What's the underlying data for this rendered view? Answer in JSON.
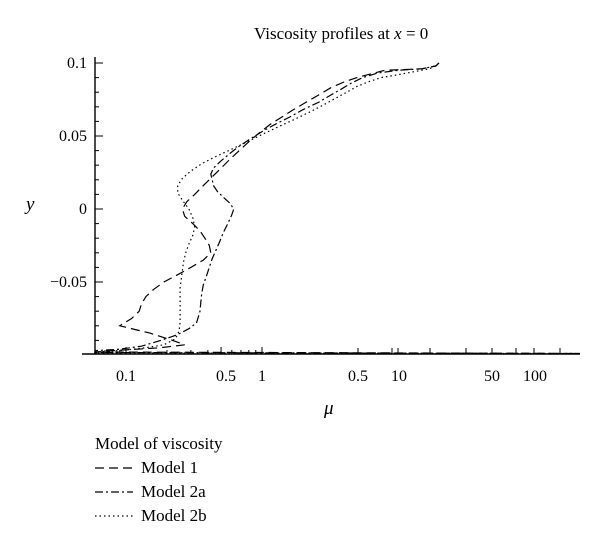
{
  "chart_data": {
    "type": "line",
    "title": "Viscosity profiles at x = 0",
    "title_parts": [
      "Viscosity profiles at ",
      "x",
      " = 0"
    ],
    "xlabel": "μ",
    "ylabel": "y",
    "x_scale": "log (broken axis, left part rescaled)",
    "y_ticks": [
      {
        "value": 0.1,
        "label": "0.1"
      },
      {
        "value": 0.05,
        "label": "0.05"
      },
      {
        "value": 0,
        "label": "0"
      },
      {
        "value": -0.05,
        "label": "−0.05"
      }
    ],
    "x_tick_labels": [
      "0.1",
      "0.5",
      "1",
      "0.5",
      "10",
      "50",
      "100"
    ],
    "legend_title": "Model of viscosity",
    "legend_position": "below-left",
    "grid": false,
    "series": [
      {
        "name": "Model 1",
        "dash": "dashed",
        "points": [
          [
            20,
            0.1
          ],
          [
            19,
            0.098
          ],
          [
            15,
            0.096
          ],
          [
            8,
            0.095
          ],
          [
            6,
            0.092
          ],
          [
            5,
            0.09
          ],
          [
            4,
            0.087
          ],
          [
            3.2,
            0.083
          ],
          [
            2.6,
            0.078
          ],
          [
            2.1,
            0.073
          ],
          [
            1.7,
            0.068
          ],
          [
            1.4,
            0.063
          ],
          [
            1.15,
            0.058
          ],
          [
            0.95,
            0.052
          ],
          [
            0.8,
            0.046
          ],
          [
            0.68,
            0.04
          ],
          [
            0.58,
            0.034
          ],
          [
            0.5,
            0.028
          ],
          [
            0.43,
            0.022
          ],
          [
            0.37,
            0.016
          ],
          [
            0.32,
            0.01
          ],
          [
            0.28,
            0.005
          ],
          [
            0.26,
            0.0
          ],
          [
            0.27,
            -0.005
          ],
          [
            0.31,
            -0.01
          ],
          [
            0.35,
            -0.015
          ],
          [
            0.38,
            -0.02
          ],
          [
            0.41,
            -0.025
          ],
          [
            0.42,
            -0.03
          ],
          [
            0.37,
            -0.035
          ],
          [
            0.3,
            -0.04
          ],
          [
            0.24,
            -0.045
          ],
          [
            0.19,
            -0.05
          ],
          [
            0.16,
            -0.055
          ],
          [
            0.14,
            -0.06
          ],
          [
            0.13,
            -0.065
          ],
          [
            0.125,
            -0.07
          ],
          [
            0.11,
            -0.075
          ],
          [
            0.09,
            -0.08
          ],
          [
            0.15,
            -0.085
          ],
          [
            0.22,
            -0.09
          ],
          [
            0.27,
            -0.093
          ],
          [
            0.18,
            -0.095
          ],
          [
            0.12,
            -0.096
          ],
          [
            0.08,
            -0.097
          ],
          [
            0.05,
            -0.098
          ],
          [
            0.03,
            -0.099
          ]
        ]
      },
      {
        "name": "Model 2a",
        "dash": "dash-dot",
        "points": [
          [
            20,
            0.1
          ],
          [
            19,
            0.098
          ],
          [
            15,
            0.096
          ],
          [
            10,
            0.095
          ],
          [
            7,
            0.093
          ],
          [
            5.5,
            0.09
          ],
          [
            4.5,
            0.086
          ],
          [
            3.8,
            0.082
          ],
          [
            3.2,
            0.078
          ],
          [
            2.6,
            0.073
          ],
          [
            2.0,
            0.068
          ],
          [
            1.6,
            0.063
          ],
          [
            1.25,
            0.058
          ],
          [
            1.0,
            0.053
          ],
          [
            0.82,
            0.048
          ],
          [
            0.68,
            0.043
          ],
          [
            0.58,
            0.038
          ],
          [
            0.5,
            0.033
          ],
          [
            0.44,
            0.028
          ],
          [
            0.42,
            0.024
          ],
          [
            0.43,
            0.02
          ],
          [
            0.44,
            0.016
          ],
          [
            0.47,
            0.012
          ],
          [
            0.52,
            0.008
          ],
          [
            0.58,
            0.004
          ],
          [
            0.62,
            0.0
          ],
          [
            0.6,
            -0.004
          ],
          [
            0.56,
            -0.01
          ],
          [
            0.52,
            -0.016
          ],
          [
            0.49,
            -0.022
          ],
          [
            0.46,
            -0.028
          ],
          [
            0.43,
            -0.034
          ],
          [
            0.41,
            -0.04
          ],
          [
            0.39,
            -0.046
          ],
          [
            0.37,
            -0.052
          ],
          [
            0.36,
            -0.058
          ],
          [
            0.355,
            -0.064
          ],
          [
            0.35,
            -0.07
          ],
          [
            0.34,
            -0.074
          ],
          [
            0.33,
            -0.078
          ],
          [
            0.29,
            -0.082
          ],
          [
            0.24,
            -0.086
          ],
          [
            0.18,
            -0.09
          ],
          [
            0.13,
            -0.094
          ],
          [
            0.09,
            -0.096
          ],
          [
            0.06,
            -0.097
          ],
          [
            0.04,
            -0.098
          ],
          [
            0.03,
            -0.099
          ]
        ]
      },
      {
        "name": "Model 2b",
        "dash": "dotted",
        "points": [
          [
            20,
            0.1
          ],
          [
            19,
            0.098
          ],
          [
            17,
            0.096
          ],
          [
            13,
            0.094
          ],
          [
            10,
            0.092
          ],
          [
            7.5,
            0.09
          ],
          [
            6,
            0.087
          ],
          [
            5,
            0.084
          ],
          [
            4.2,
            0.08
          ],
          [
            3.5,
            0.076
          ],
          [
            2.8,
            0.071
          ],
          [
            2.2,
            0.066
          ],
          [
            1.7,
            0.061
          ],
          [
            1.3,
            0.056
          ],
          [
            1.0,
            0.051
          ],
          [
            0.78,
            0.046
          ],
          [
            0.6,
            0.041
          ],
          [
            0.46,
            0.036
          ],
          [
            0.36,
            0.031
          ],
          [
            0.3,
            0.026
          ],
          [
            0.26,
            0.021
          ],
          [
            0.24,
            0.016
          ],
          [
            0.24,
            0.011
          ],
          [
            0.26,
            0.006
          ],
          [
            0.29,
            0.0
          ],
          [
            0.31,
            -0.006
          ],
          [
            0.32,
            -0.012
          ],
          [
            0.31,
            -0.018
          ],
          [
            0.29,
            -0.024
          ],
          [
            0.275,
            -0.03
          ],
          [
            0.265,
            -0.036
          ],
          [
            0.26,
            -0.042
          ],
          [
            0.255,
            -0.048
          ],
          [
            0.25,
            -0.054
          ],
          [
            0.25,
            -0.06
          ],
          [
            0.25,
            -0.066
          ],
          [
            0.25,
            -0.072
          ],
          [
            0.25,
            -0.078
          ],
          [
            0.245,
            -0.084
          ],
          [
            0.23,
            -0.089
          ],
          [
            0.19,
            -0.093
          ],
          [
            0.14,
            -0.095
          ],
          [
            0.09,
            -0.097
          ],
          [
            0.05,
            -0.098
          ],
          [
            0.03,
            -0.099
          ]
        ]
      }
    ]
  }
}
